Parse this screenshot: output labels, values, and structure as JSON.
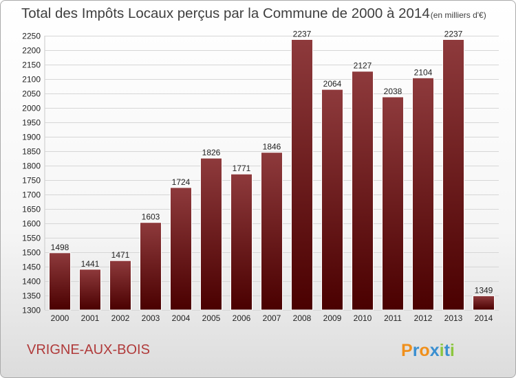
{
  "chart_data": {
    "type": "bar",
    "title": "Total des Impôts Locaux perçus par la Commune de 2000 à 2014",
    "unit_note": "(en milliers d'€)",
    "categories": [
      "2000",
      "2001",
      "2002",
      "2003",
      "2004",
      "2005",
      "2006",
      "2007",
      "2008",
      "2009",
      "2010",
      "2011",
      "2012",
      "2013",
      "2014"
    ],
    "values": [
      1498,
      1441,
      1471,
      1603,
      1724,
      1826,
      1771,
      1846,
      2237,
      2064,
      2127,
      2038,
      2104,
      2237,
      1349
    ],
    "ylim": [
      1300,
      2250
    ],
    "ytick_step": 50,
    "grid": true,
    "xlabel": "",
    "ylabel": "",
    "bar_color_light": "#8e3a3c",
    "bar_color_dark": "#4a0000"
  },
  "commune": "VRIGNE-AUX-BOIS",
  "logo": {
    "letters": [
      "P",
      "r",
      "o",
      "x",
      "i",
      "t",
      "i"
    ],
    "colors": [
      "#f0901c",
      "#3a8fd0",
      "#f0901c",
      "#3a8fd0",
      "#8cc63f",
      "#3a8fd0",
      "#8cc63f"
    ]
  }
}
